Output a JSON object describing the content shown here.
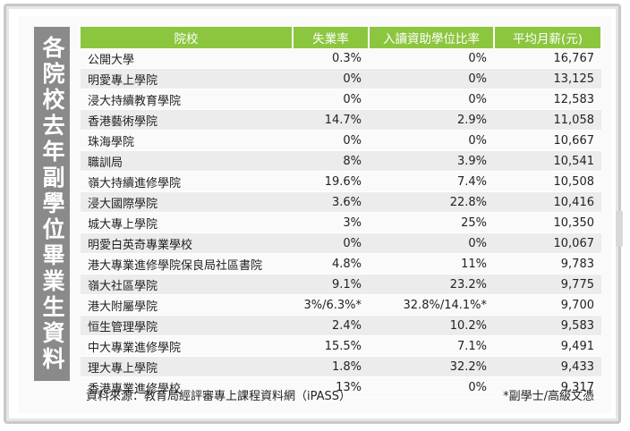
{
  "title": "各院校去年副學位畢業生資料",
  "table": {
    "headers": [
      "院校",
      "失業率",
      "入讀資助學位比率",
      "平均月薪(元)"
    ],
    "rows": [
      [
        "公開大學",
        "0.3%",
        "0%",
        "16,767"
      ],
      [
        "明愛專上學院",
        "0%",
        "0%",
        "13,125"
      ],
      [
        "浸大持續教育學院",
        "0%",
        "0%",
        "12,583"
      ],
      [
        "香港藝術學院",
        "14.7%",
        "2.9%",
        "11,058"
      ],
      [
        "珠海學院",
        "0%",
        "0%",
        "10,667"
      ],
      [
        "職訓局",
        "8%",
        "3.9%",
        "10,541"
      ],
      [
        "嶺大持續進修學院",
        "19.6%",
        "7.4%",
        "10,508"
      ],
      [
        "浸大國際學院",
        "3.6%",
        "22.8%",
        "10,416"
      ],
      [
        "城大專上學院",
        "3%",
        "25%",
        "10,350"
      ],
      [
        "明愛白英奇專業學校",
        "0%",
        "0%",
        "10,067"
      ],
      [
        "港大專業進修學院保良局社區書院",
        "4.8%",
        "11%",
        "9,783"
      ],
      [
        "嶺大社區學院",
        "9.1%",
        "23.2%",
        "9,775"
      ],
      [
        "港大附屬學院",
        "3%/6.3%*",
        "32.8%/14.1%*",
        "9,700"
      ],
      [
        "恒生管理學院",
        "2.4%",
        "10.2%",
        "9,583"
      ],
      [
        "中大專業進修學院",
        "15.5%",
        "7.1%",
        "9,491"
      ],
      [
        "理大專上學院",
        "1.8%",
        "32.2%",
        "9,433"
      ],
      [
        "香港專業進修學校",
        "13%",
        "0%",
        "9,317"
      ]
    ]
  },
  "footer": {
    "source": "資料來源：教育局經評審專上課程資料網（iPASS）",
    "note": "*副學士/高級文憑"
  }
}
